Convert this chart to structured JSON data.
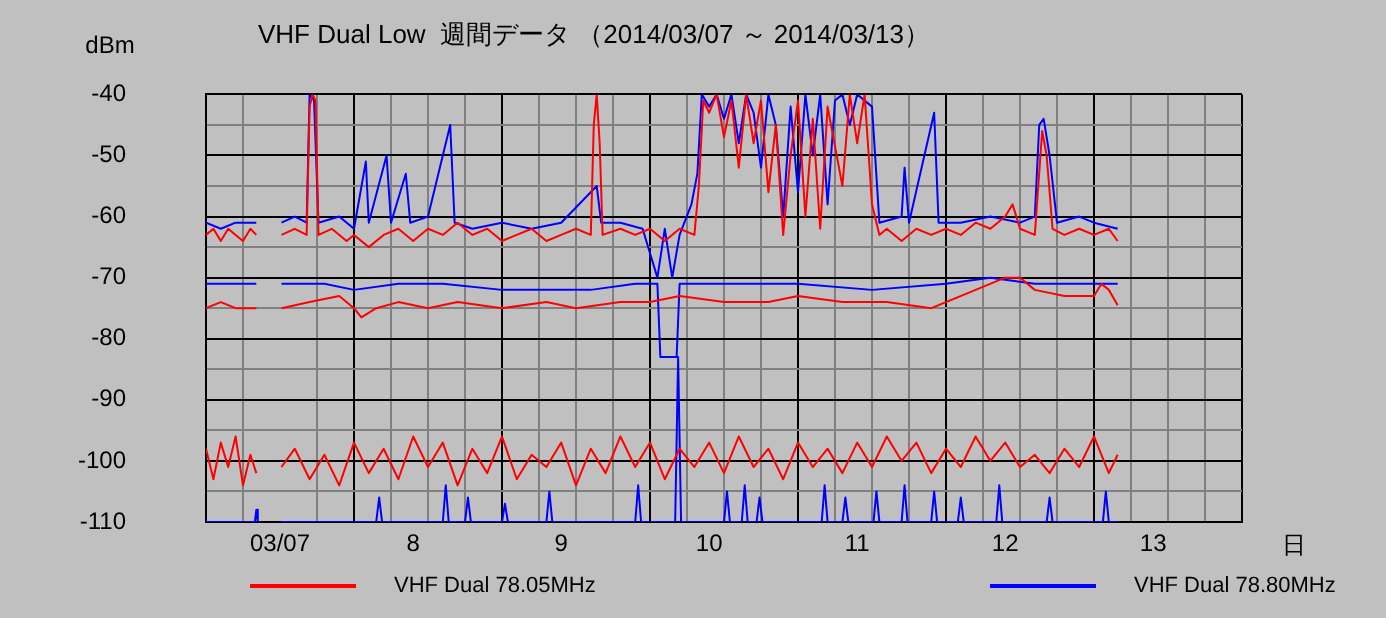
{
  "chart_data": {
    "type": "line",
    "title": "VHF Dual Low  週間データ （2014/03/07 ～ 2014/03/13）",
    "ylabel": "dBm",
    "xlabel": "日",
    "xlim": [
      7,
      14
    ],
    "ylim": [
      -110,
      -40
    ],
    "xticks": [
      {
        "value": 7,
        "label": null
      },
      {
        "value": 7.25,
        "label": null
      },
      {
        "value": 7.5,
        "label": "03/07"
      },
      {
        "value": 7.75,
        "label": null
      },
      {
        "value": 8,
        "label": null
      },
      {
        "value": 8.25,
        "label": null
      },
      {
        "value": 8.4,
        "label": "8"
      },
      {
        "value": 8.5,
        "label": null
      },
      {
        "value": 8.75,
        "label": null
      },
      {
        "value": 9,
        "label": null
      },
      {
        "value": 9.25,
        "label": null
      },
      {
        "value": 9.4,
        "label": "9"
      },
      {
        "value": 9.5,
        "label": null
      },
      {
        "value": 9.75,
        "label": null
      },
      {
        "value": 10,
        "label": null
      },
      {
        "value": 10.25,
        "label": null
      },
      {
        "value": 10.4,
        "label": "10"
      },
      {
        "value": 10.5,
        "label": null
      },
      {
        "value": 10.75,
        "label": null
      },
      {
        "value": 11,
        "label": null
      },
      {
        "value": 11.25,
        "label": null
      },
      {
        "value": 11.4,
        "label": "11"
      },
      {
        "value": 11.5,
        "label": null
      },
      {
        "value": 11.75,
        "label": null
      },
      {
        "value": 12,
        "label": null
      },
      {
        "value": 12.25,
        "label": null
      },
      {
        "value": 12.4,
        "label": "12"
      },
      {
        "value": 12.5,
        "label": null
      },
      {
        "value": 12.75,
        "label": null
      },
      {
        "value": 13,
        "label": null
      },
      {
        "value": 13.25,
        "label": null
      },
      {
        "value": 13.4,
        "label": "13"
      },
      {
        "value": 13.5,
        "label": null
      },
      {
        "value": 13.75,
        "label": null
      },
      {
        "value": 14,
        "label": null
      }
    ],
    "yticks": [
      -110,
      {
        "value": -105,
        "label": null
      },
      -100,
      {
        "value": -95,
        "label": null
      },
      -90,
      {
        "value": -85,
        "label": null
      },
      -80,
      {
        "value": -75,
        "label": null
      },
      -70,
      {
        "value": -65,
        "label": null
      },
      -60,
      {
        "value": -55,
        "label": null
      },
      -50,
      {
        "value": -45,
        "label": null
      },
      -40
    ],
    "grid": true,
    "legend": "bottom",
    "marker": "none",
    "line_style": "solid",
    "series": [
      {
        "name": "VHF Dual 78.05MHz",
        "color": "#ff0000",
        "x": [
          7.0,
          7.05,
          7.1,
          7.15,
          7.2,
          7.25,
          7.3,
          7.34,
          7.4,
          7.51,
          7.6,
          7.68,
          7.7,
          7.72,
          7.74,
          7.76,
          7.85,
          7.95,
          8.0,
          8.1,
          8.2,
          8.3,
          8.4,
          8.5,
          8.6,
          8.7,
          8.8,
          8.9,
          9.0,
          9.1,
          9.2,
          9.3,
          9.4,
          9.5,
          9.6,
          9.62,
          9.64,
          9.66,
          9.68,
          9.8,
          9.9,
          10.0,
          10.1,
          10.2,
          10.3,
          10.33,
          10.36,
          10.4,
          10.45,
          10.5,
          10.55,
          10.6,
          10.65,
          10.7,
          10.75,
          10.8,
          10.85,
          10.9,
          10.95,
          11.0,
          11.05,
          11.1,
          11.15,
          11.2,
          11.3,
          11.35,
          11.4,
          11.45,
          11.5,
          11.55,
          11.6,
          11.7,
          11.8,
          11.9,
          12.0,
          12.1,
          12.2,
          12.3,
          12.4,
          12.45,
          12.5,
          12.6,
          12.65,
          12.68,
          12.72,
          12.8,
          12.9,
          13.0,
          13.1,
          13.16
        ],
        "values": [
          -63,
          -62,
          -64,
          -62,
          -63,
          -64,
          -62,
          -63,
          null,
          -63,
          -62,
          -63,
          -42,
          -40,
          -41,
          -63,
          -62,
          -64,
          -63,
          -65,
          -63,
          -62,
          -64,
          -62,
          -63,
          -61,
          -63,
          -62,
          -64,
          -63,
          -62,
          -64,
          -63,
          -62,
          -63,
          -45,
          -40,
          -48,
          -63,
          -62,
          -63,
          -62,
          -64,
          -62,
          -63,
          -55,
          -41,
          -43,
          -40,
          -47,
          -41,
          -52,
          -40,
          -48,
          -41,
          -56,
          -45,
          -63,
          -50,
          -41,
          -60,
          -44,
          -62,
          -42,
          -55,
          -40,
          -48,
          -40,
          -58,
          -63,
          -62,
          -64,
          -62,
          -63,
          -62,
          -63,
          -61,
          -62,
          -60,
          -58,
          -62,
          -63,
          -46,
          -50,
          -62,
          -63,
          -62,
          -63,
          -62,
          -64
        ]
      },
      {
        "name": "VHF Dual 78.80MHz",
        "color": "#0000ff",
        "x": [
          7.0,
          7.1,
          7.2,
          7.34,
          7.4,
          7.51,
          7.6,
          7.68,
          7.7,
          7.73,
          7.76,
          7.9,
          8.0,
          8.08,
          8.1,
          8.22,
          8.25,
          8.35,
          8.38,
          8.5,
          8.65,
          8.68,
          8.8,
          9.0,
          9.2,
          9.4,
          9.64,
          9.67,
          9.8,
          9.95,
          10.05,
          10.1,
          10.15,
          10.2,
          10.28,
          10.32,
          10.35,
          10.4,
          10.45,
          10.5,
          10.55,
          10.6,
          10.65,
          10.7,
          10.75,
          10.8,
          10.85,
          10.9,
          10.95,
          11.0,
          11.05,
          11.1,
          11.15,
          11.2,
          11.25,
          11.3,
          11.35,
          11.4,
          11.5,
          11.55,
          11.7,
          11.72,
          11.75,
          11.92,
          11.95,
          12.1,
          12.3,
          12.5,
          12.6,
          12.63,
          12.66,
          12.7,
          12.75,
          12.9,
          13.0,
          13.16
        ],
        "values": [
          -61,
          -62,
          -61,
          -61,
          null,
          -61,
          -60,
          -61,
          -40,
          -41,
          -61,
          -60,
          -62,
          -51,
          -61,
          -50,
          -61,
          -53,
          -61,
          -60,
          -45,
          -61,
          -62,
          -61,
          -62,
          -61,
          -55,
          -61,
          -61,
          -62,
          -70,
          -62,
          -70,
          -63,
          -58,
          -53,
          -40,
          -42,
          -40,
          -44,
          -40,
          -48,
          -40,
          -43,
          -52,
          -40,
          -45,
          -60,
          -42,
          -56,
          -40,
          -50,
          -40,
          -58,
          -41,
          -40,
          -45,
          -40,
          -42,
          -61,
          -60,
          -52,
          -61,
          -43,
          -61,
          -61,
          -60,
          -61,
          -60,
          -45,
          -44,
          -50,
          -61,
          -60,
          -61,
          -62
        ]
      },
      {
        "color": "#ff0000",
        "x": [
          7.0,
          7.1,
          7.2,
          7.34,
          7.4,
          7.51,
          7.7,
          7.9,
          8.0,
          8.05,
          8.15,
          8.3,
          8.5,
          8.7,
          9.0,
          9.3,
          9.5,
          9.8,
          10.0,
          10.2,
          10.5,
          10.8,
          11.0,
          11.3,
          11.6,
          11.9,
          12.0,
          12.2,
          12.4,
          12.5,
          12.6,
          12.8,
          13.0,
          13.05,
          13.1,
          13.16
        ],
        "values": [
          -75,
          -74,
          -75,
          -75,
          null,
          -75,
          -74,
          -73,
          -75,
          -76.5,
          -75,
          -74,
          -75,
          -74,
          -75,
          -74,
          -75,
          -74,
          -74,
          -73,
          -74,
          -74,
          -73,
          -74,
          -74,
          -75,
          -74,
          -72,
          -70,
          -70,
          -72,
          -73,
          -73,
          -71,
          -72,
          -74.5
        ]
      },
      {
        "color": "#0000ff",
        "x": [
          7.0,
          7.34,
          7.4,
          7.51,
          7.8,
          8.0,
          8.3,
          8.6,
          9.0,
          9.3,
          9.6,
          9.9,
          10.05,
          10.07,
          10.18,
          10.2,
          10.5,
          11.0,
          11.5,
          12.0,
          12.3,
          12.6,
          13.0,
          13.16
        ],
        "values": [
          -71,
          -71,
          null,
          -71,
          -71,
          -72,
          -71,
          -71,
          -72,
          -72,
          -72,
          -71,
          -71,
          -83,
          -83,
          -71,
          -71,
          -71,
          -72,
          -71,
          -70,
          -71,
          -71,
          -71
        ]
      },
      {
        "color": "#ff0000",
        "x": [
          7.0,
          7.05,
          7.1,
          7.15,
          7.2,
          7.25,
          7.3,
          7.34,
          7.4,
          7.51,
          7.6,
          7.7,
          7.8,
          7.9,
          8.0,
          8.1,
          8.2,
          8.3,
          8.4,
          8.5,
          8.6,
          8.7,
          8.8,
          8.9,
          9.0,
          9.1,
          9.2,
          9.3,
          9.4,
          9.5,
          9.6,
          9.7,
          9.8,
          9.9,
          10.0,
          10.1,
          10.2,
          10.3,
          10.4,
          10.5,
          10.6,
          10.7,
          10.8,
          10.9,
          11.0,
          11.1,
          11.2,
          11.3,
          11.4,
          11.5,
          11.6,
          11.7,
          11.8,
          11.9,
          12.0,
          12.1,
          12.2,
          12.3,
          12.4,
          12.5,
          12.6,
          12.7,
          12.8,
          12.9,
          13.0,
          13.1,
          13.16
        ],
        "values": [
          -98,
          -103,
          -97,
          -101,
          -96,
          -104,
          -99,
          -102,
          null,
          -101,
          -98,
          -103,
          -99,
          -104,
          -97,
          -102,
          -98,
          -103,
          -96,
          -101,
          -97,
          -104,
          -98,
          -102,
          -96,
          -103,
          -99,
          -101,
          -97,
          -104,
          -98,
          -102,
          -96,
          -101,
          -97,
          -103,
          -98,
          -101,
          -97,
          -102,
          -96,
          -101,
          -98,
          -103,
          -97,
          -101,
          -98,
          -102,
          -97,
          -101,
          -96,
          -100,
          -97,
          -102,
          -98,
          -101,
          -96,
          -100,
          -97,
          -101,
          -99,
          -102,
          -98,
          -101,
          -96,
          -102,
          -99
        ]
      },
      {
        "color": "#0000ff",
        "x": [
          7.0,
          7.33,
          7.34,
          7.35,
          7.4,
          7.51,
          8.15,
          8.17,
          8.19,
          8.6,
          8.62,
          8.64,
          8.75,
          8.77,
          8.79,
          9.0,
          9.02,
          9.04,
          9.3,
          9.32,
          9.34,
          9.9,
          9.92,
          9.94,
          10.17,
          10.19,
          10.21,
          10.5,
          10.52,
          10.54,
          10.62,
          10.64,
          10.66,
          10.72,
          10.74,
          10.76,
          11.16,
          11.18,
          11.2,
          11.3,
          11.32,
          11.34,
          11.51,
          11.53,
          11.55,
          11.7,
          11.72,
          11.74,
          11.9,
          11.92,
          11.94,
          12.08,
          12.1,
          12.12,
          12.34,
          12.36,
          12.38,
          12.68,
          12.7,
          12.72,
          13.06,
          13.08,
          13.1,
          13.16
        ],
        "values": [
          -110,
          -110,
          -108,
          -110,
          null,
          -110,
          -110,
          -106,
          -110,
          -110,
          -104,
          -110,
          -110,
          -106,
          -110,
          -110,
          -107,
          -110,
          -110,
          -105,
          -110,
          -110,
          -104,
          -110,
          -110,
          -83,
          -110,
          -110,
          -105,
          -110,
          -110,
          -104,
          -110,
          -110,
          -106,
          -110,
          -110,
          -104,
          -110,
          -110,
          -106,
          -110,
          -110,
          -105,
          -110,
          -110,
          -104,
          -110,
          -110,
          -105,
          -110,
          -110,
          -106,
          -110,
          -110,
          -104,
          -110,
          -110,
          -106,
          -110,
          -110,
          -105,
          -110,
          -110
        ]
      }
    ]
  }
}
